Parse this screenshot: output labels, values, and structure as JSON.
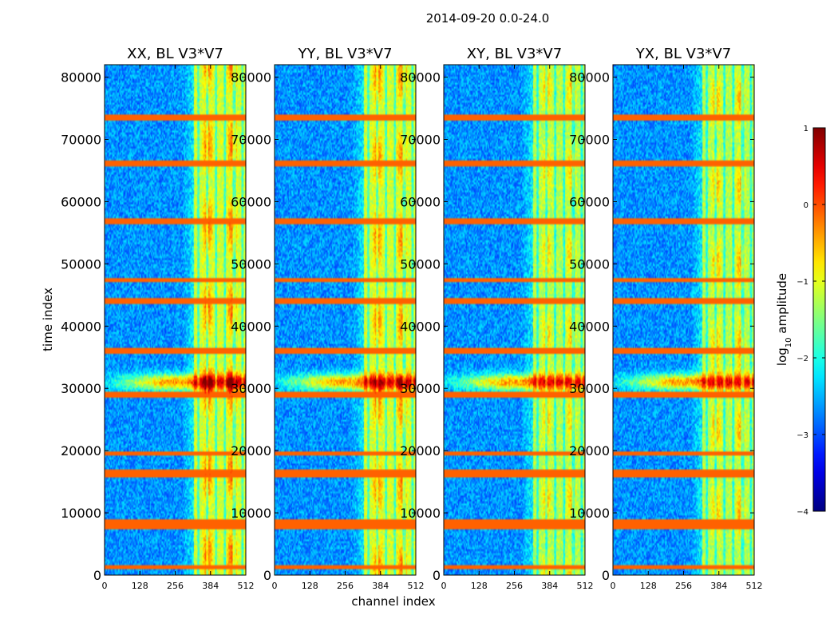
{
  "figure": {
    "suptitle": "2014-09-20 0.0-24.0"
  },
  "chart_data": {
    "type": "heatmap",
    "xlabel": "channel index",
    "ylabel": "time index",
    "x_ticks": [
      0,
      128,
      256,
      384,
      512
    ],
    "y_ticks": [
      0,
      10000,
      20000,
      30000,
      40000,
      50000,
      60000,
      70000,
      80000
    ],
    "xlim": [
      0,
      512
    ],
    "ylim": [
      0,
      82000
    ],
    "panels": [
      {
        "title": "XX, BL V3*V7",
        "band_strength": 1.0,
        "blob_boost": 0.3
      },
      {
        "title": "YY, BL V3*V7",
        "band_strength": 1.0,
        "blob_boost": 0.2
      },
      {
        "title": "XY, BL V3*V7",
        "band_strength": 0.95,
        "blob_boost": 0.0
      },
      {
        "title": "YX, BL V3*V7",
        "band_strength": 0.95,
        "blob_boost": 0.1
      }
    ],
    "bright_band_channels": [
      325,
      510
    ],
    "rfi_time_lines": [
      1200,
      7800,
      8500,
      16000,
      16600,
      19500,
      29000,
      36000,
      44000,
      47500,
      56800,
      66200,
      73500
    ],
    "event_time": 31000,
    "colorbar": {
      "label_prefix": "log",
      "label_sub": "10",
      "label_suffix": " amplitude",
      "range": [
        -4,
        1
      ],
      "ticks": [
        1,
        0,
        -1,
        -2,
        -3,
        -4
      ],
      "tick_labels": [
        "1",
        "0",
        "−1",
        "−2",
        "−3",
        "−4"
      ],
      "colormap": "jet"
    }
  }
}
